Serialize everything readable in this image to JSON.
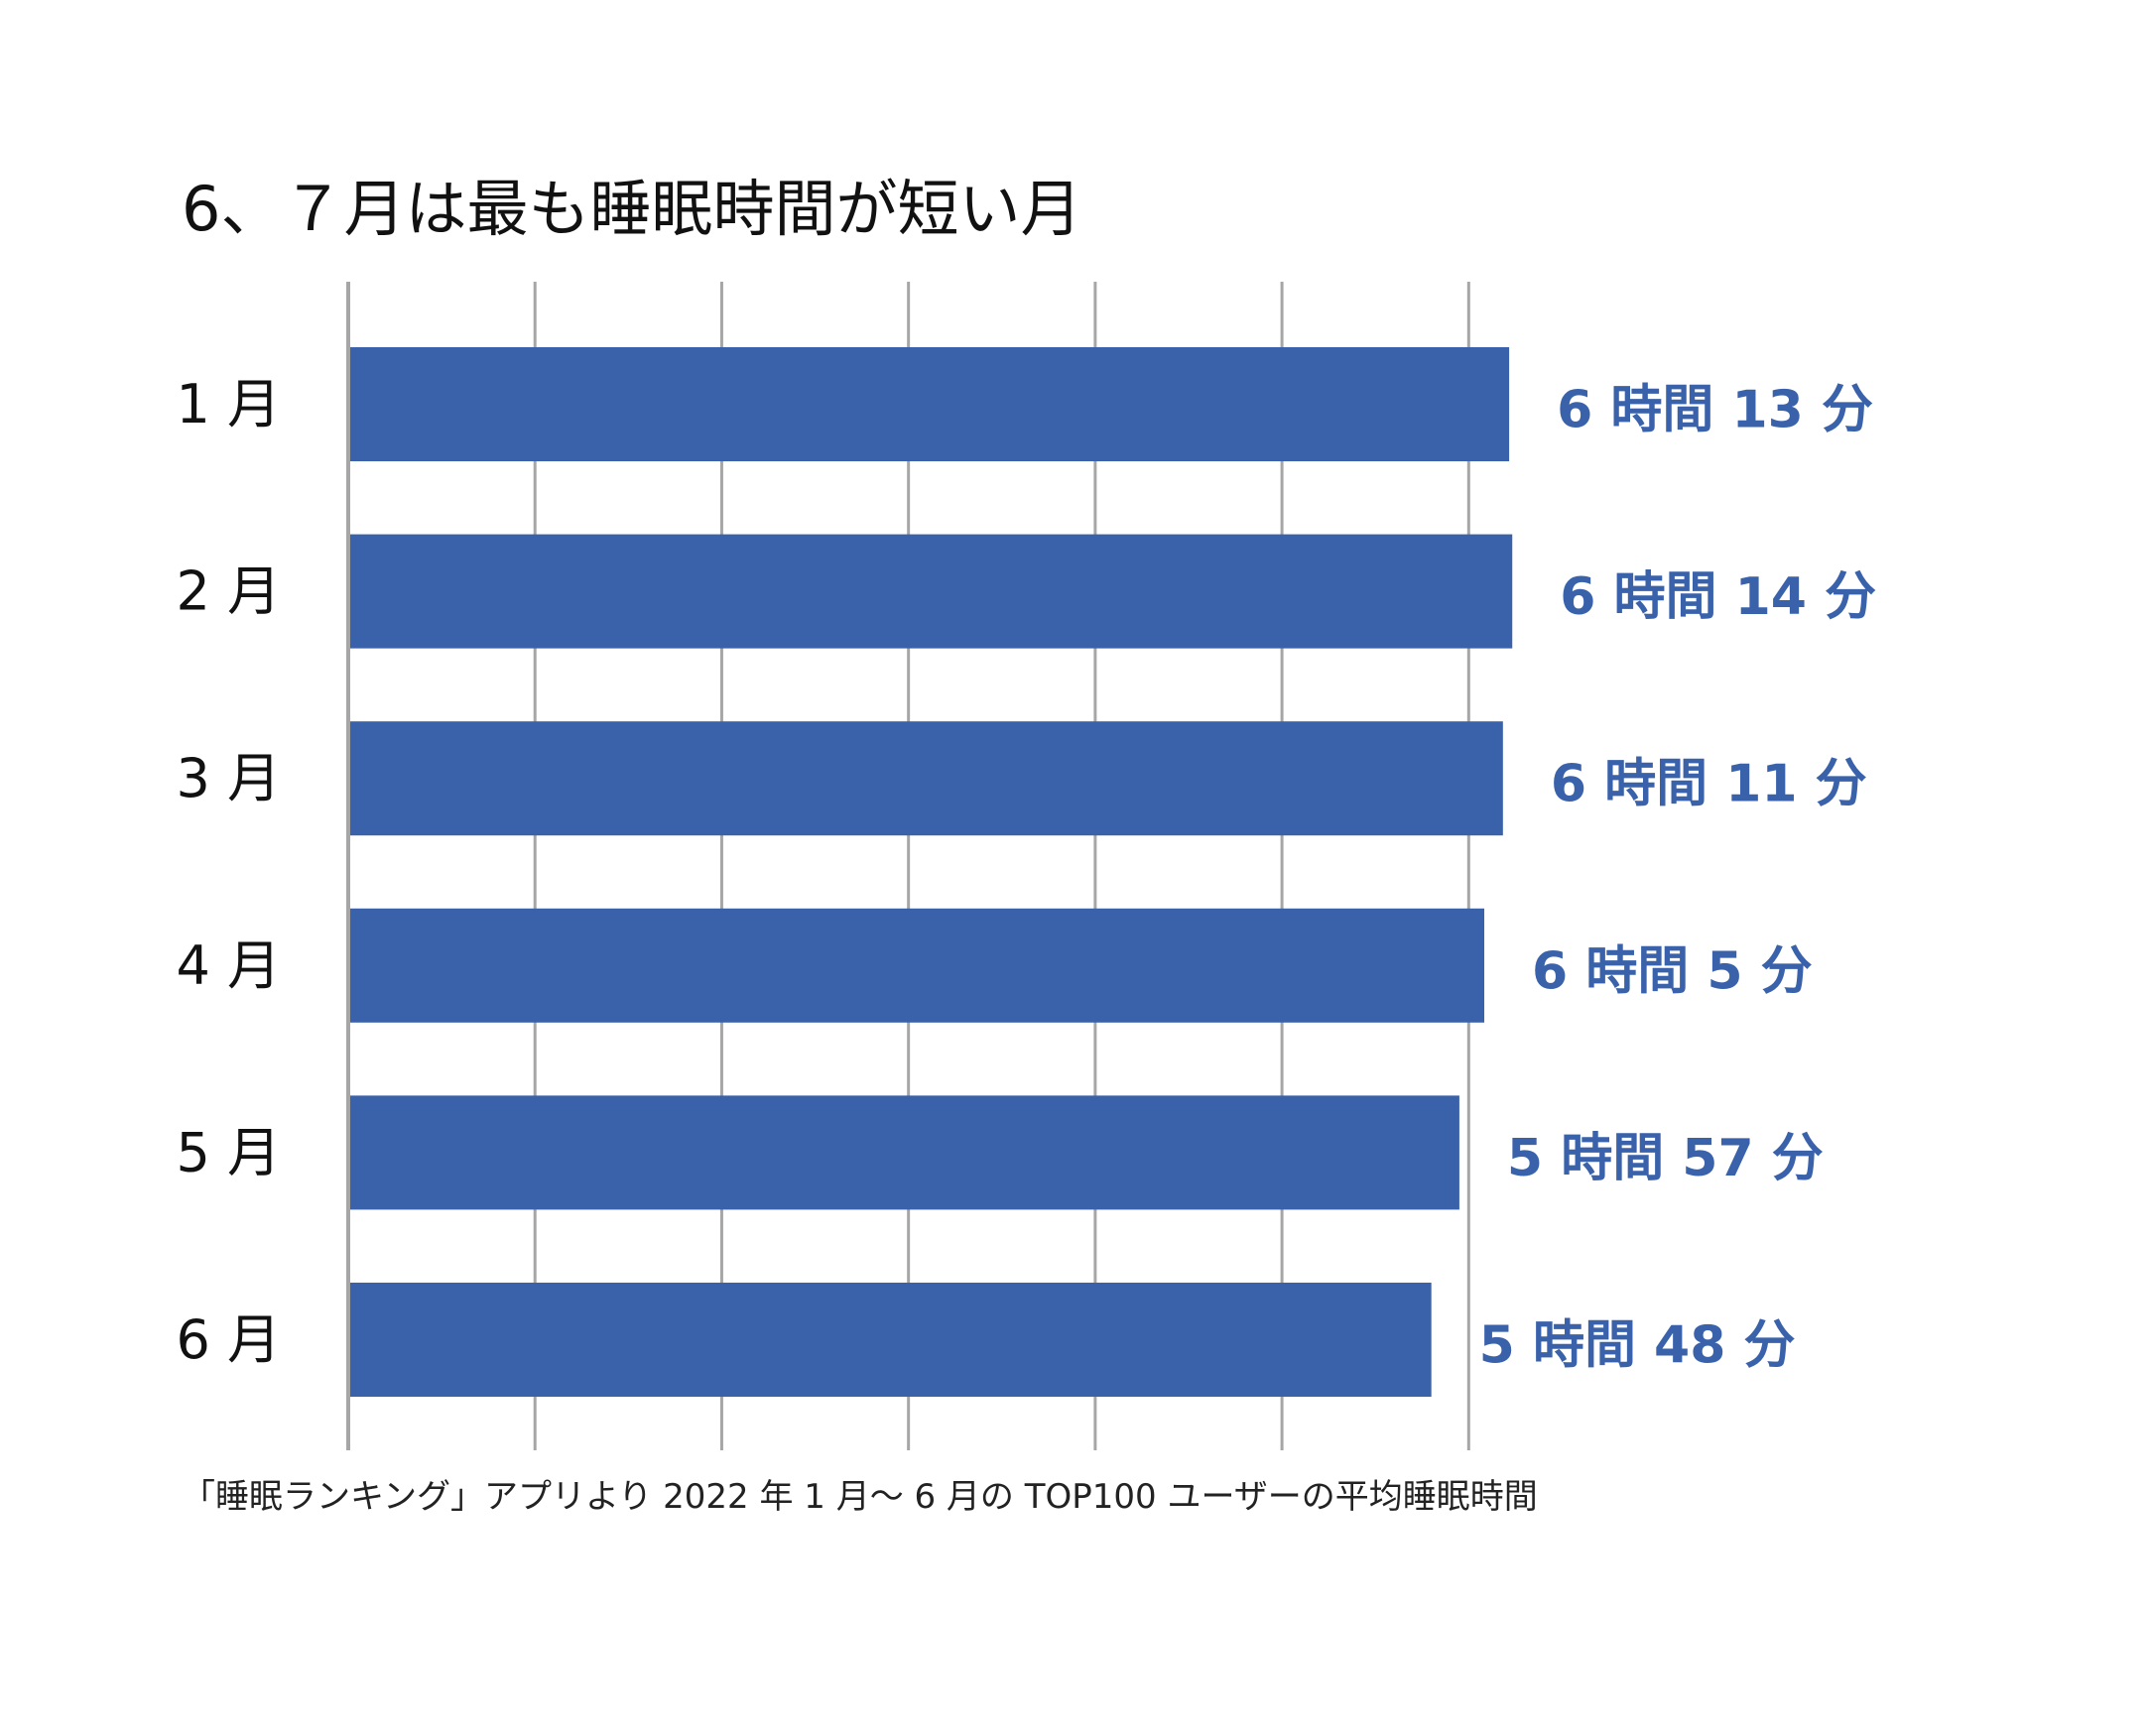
{
  "chart_data": {
    "type": "bar",
    "orientation": "horizontal",
    "title": "6、７月は最も睡眠時間が短い月",
    "categories": [
      "1 月",
      "2 月",
      "3 月",
      "4 月",
      "5 月",
      "6 月"
    ],
    "values": [
      373,
      374,
      371,
      365,
      357,
      348
    ],
    "value_labels": [
      "6 時間 13 分",
      "6 時間 14 分",
      "6 時間 11 分",
      "6 時間 5 分",
      "5 時間 57 分",
      "5 時間 48 分"
    ],
    "value_unit": "minutes",
    "xlim": [
      0,
      360
    ],
    "grid_step": 60,
    "grid": true,
    "xlabel": "",
    "ylabel": "",
    "footnote": "「睡眠ランキング」アプリより 2022 年 1 月〜 6 月の TOP100 ユーザーの平均睡眠時間"
  },
  "colors": {
    "bar": "#3a62ab",
    "value_label": "#3a62ab",
    "grid": "#a6a6a6",
    "axis": "#a6a6a6",
    "text": "#111111"
  }
}
